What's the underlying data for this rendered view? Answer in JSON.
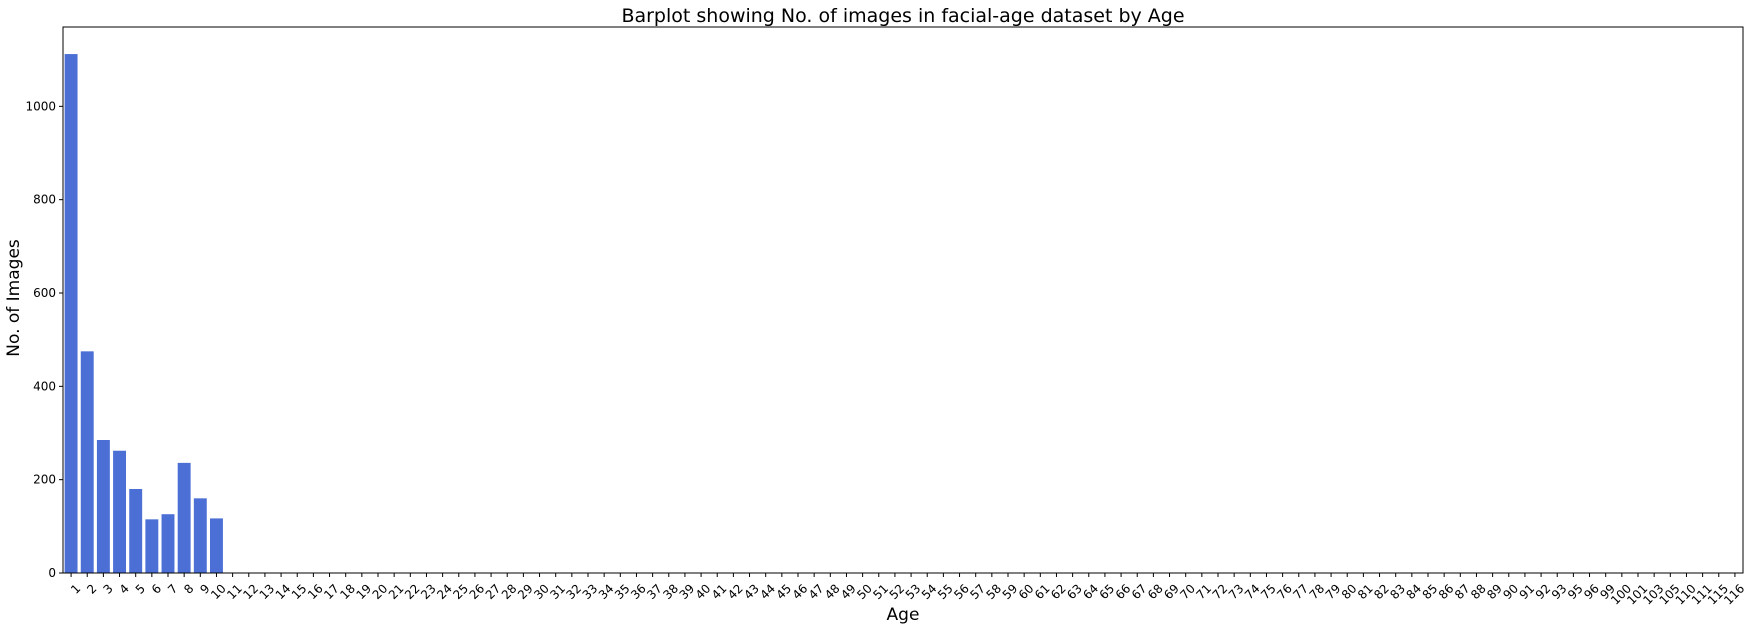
{
  "chart_data": {
    "type": "bar",
    "title": "Barplot showing No. of images in facial-age dataset by Age",
    "xlabel": "Age",
    "ylabel": "No. of Images",
    "ylim": [
      0,
      1170
    ],
    "yticks": [
      0,
      200,
      400,
      600,
      800,
      1000
    ],
    "grid": false,
    "bar_color": "#4c6fd6",
    "categories": [
      "1",
      "2",
      "3",
      "4",
      "5",
      "6",
      "7",
      "8",
      "9",
      "10",
      "11",
      "12",
      "13",
      "14",
      "15",
      "16",
      "17",
      "18",
      "19",
      "20",
      "21",
      "22",
      "23",
      "24",
      "25",
      "26",
      "27",
      "28",
      "29",
      "30",
      "31",
      "32",
      "33",
      "34",
      "35",
      "36",
      "37",
      "38",
      "39",
      "40",
      "41",
      "42",
      "43",
      "44",
      "45",
      "46",
      "47",
      "48",
      "49",
      "50",
      "51",
      "52",
      "53",
      "54",
      "55",
      "56",
      "57",
      "58",
      "59",
      "60",
      "61",
      "62",
      "63",
      "64",
      "65",
      "66",
      "67",
      "68",
      "69",
      "70",
      "71",
      "72",
      "73",
      "74",
      "75",
      "76",
      "77",
      "78",
      "79",
      "80",
      "81",
      "82",
      "83",
      "84",
      "85",
      "86",
      "87",
      "88",
      "89",
      "90",
      "91",
      "92",
      "93",
      "95",
      "96",
      "99",
      "100",
      "101",
      "103",
      "105",
      "110",
      "111",
      "115",
      "116"
    ],
    "values": [
      1112,
      475,
      285,
      262,
      180,
      115,
      126,
      236,
      160,
      117,
      0,
      0,
      0,
      0,
      0,
      0,
      0,
      0,
      0,
      0,
      0,
      0,
      0,
      0,
      0,
      0,
      0,
      0,
      0,
      0,
      0,
      0,
      0,
      0,
      0,
      0,
      0,
      0,
      0,
      0,
      0,
      0,
      0,
      0,
      0,
      0,
      0,
      0,
      0,
      0,
      0,
      0,
      0,
      0,
      0,
      0,
      0,
      0,
      0,
      0,
      0,
      0,
      0,
      0,
      0,
      0,
      0,
      0,
      0,
      0,
      0,
      0,
      0,
      0,
      0,
      0,
      0,
      0,
      0,
      0,
      0,
      0,
      0,
      0,
      0,
      0,
      0,
      0,
      0,
      0,
      0,
      0,
      0,
      0,
      0,
      0,
      0,
      0,
      0,
      0,
      0,
      0,
      0,
      0
    ]
  }
}
